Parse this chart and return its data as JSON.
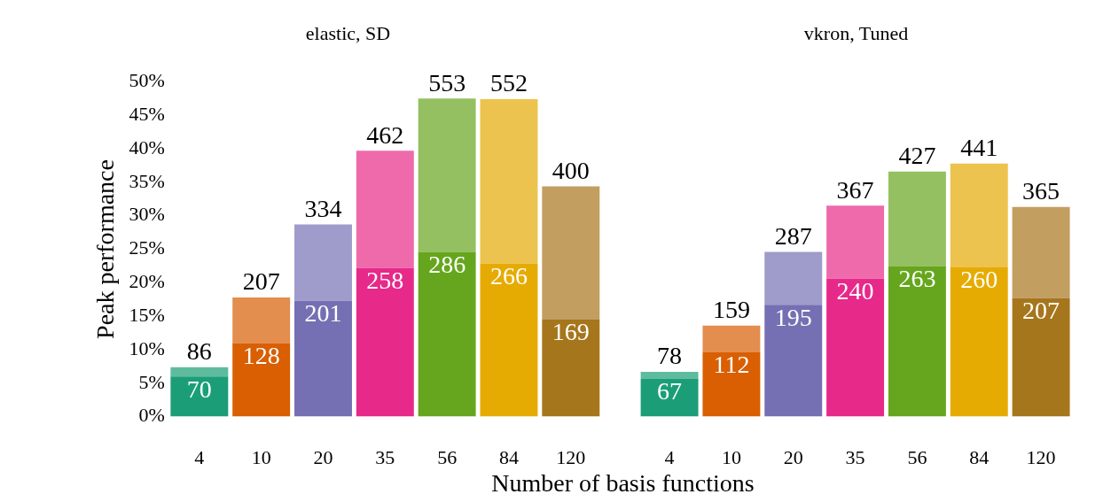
{
  "chart_data": [
    {
      "type": "bar",
      "title": "elastic, SD",
      "ylabel": "Peak performance",
      "xlabel": "Number of basis functions",
      "categories": [
        "4",
        "10",
        "20",
        "35",
        "56",
        "84",
        "120"
      ],
      "stacked": true,
      "ylim": [
        0,
        50
      ],
      "yticks": [
        {
          "value": 0,
          "label": "0%"
        },
        {
          "value": 5,
          "label": "5%"
        },
        {
          "value": 10,
          "label": "10%"
        },
        {
          "value": 15,
          "label": "15%"
        },
        {
          "value": 20,
          "label": "20%"
        },
        {
          "value": 25,
          "label": "25%"
        },
        {
          "value": 30,
          "label": "30%"
        },
        {
          "value": 35,
          "label": "35%"
        },
        {
          "value": 40,
          "label": "40%"
        },
        {
          "value": 45,
          "label": "45%"
        },
        {
          "value": 50,
          "label": "50%"
        }
      ],
      "grid": false,
      "legend": false,
      "series": [
        {
          "colors": [
            "#1b9e77",
            "#d95f02",
            "#7570b3",
            "#e7298a",
            "#66a61e",
            "#e6ab02",
            "#a6761d"
          ],
          "values": [
            6.0,
            11.0,
            17.3,
            22.2,
            24.6,
            22.9,
            14.5
          ]
        },
        {
          "colors": [
            "#5fbb9d",
            "#e38e4e",
            "#9f9bca",
            "#ee6aab",
            "#94c061",
            "#ecc34e",
            "#c29e61"
          ],
          "values": [
            1.4,
            6.8,
            11.4,
            17.5,
            22.9,
            24.5,
            19.9
          ]
        }
      ],
      "annotations": [
        {
          "text": "70",
          "x": "4",
          "y": 6.0
        },
        {
          "text": "128",
          "x": "10",
          "y": 11.0
        },
        {
          "text": "201",
          "x": "20",
          "y": 17.3
        },
        {
          "text": "258",
          "x": "35",
          "y": 22.2
        },
        {
          "text": "286",
          "x": "56",
          "y": 24.6
        },
        {
          "text": "266",
          "x": "84",
          "y": 22.9
        },
        {
          "text": "169",
          "x": "120",
          "y": 14.5
        },
        {
          "text": "86",
          "x": "4",
          "y": 7.4
        },
        {
          "text": "207",
          "x": "10",
          "y": 17.8
        },
        {
          "text": "334",
          "x": "20",
          "y": 28.7
        },
        {
          "text": "462",
          "x": "35",
          "y": 39.7
        },
        {
          "text": "553",
          "x": "56",
          "y": 47.5
        },
        {
          "text": "552",
          "x": "84",
          "y": 47.4
        },
        {
          "text": "400",
          "x": "120",
          "y": 34.4
        }
      ]
    },
    {
      "type": "bar",
      "title": "vkron, Tuned",
      "categories": [
        "4",
        "10",
        "20",
        "35",
        "56",
        "84",
        "120"
      ],
      "stacked": true,
      "ylim": [
        0,
        50
      ],
      "tick_labels": "x",
      "grid": false,
      "legend": false,
      "series": [
        {
          "colors": [
            "#1b9e77",
            "#d95f02",
            "#7570b3",
            "#e7298a",
            "#66a61e",
            "#e6ab02",
            "#a6761d"
          ],
          "values": [
            5.7,
            9.6,
            16.7,
            20.6,
            22.5,
            22.3,
            17.7
          ]
        },
        {
          "colors": [
            "#5fbb9d",
            "#e38e4e",
            "#9f9bca",
            "#ee6aab",
            "#94c061",
            "#ecc34e",
            "#c29e61"
          ],
          "values": [
            1.0,
            4.0,
            7.9,
            10.9,
            14.1,
            15.5,
            13.6
          ]
        }
      ],
      "annotations": [
        {
          "text": "67",
          "x": "4",
          "y": 5.7
        },
        {
          "text": "112",
          "x": "10",
          "y": 9.6
        },
        {
          "text": "195",
          "x": "20",
          "y": 16.7
        },
        {
          "text": "240",
          "x": "35",
          "y": 20.6
        },
        {
          "text": "263",
          "x": "56",
          "y": 22.5
        },
        {
          "text": "260",
          "x": "84",
          "y": 22.3
        },
        {
          "text": "207",
          "x": "120",
          "y": 17.7
        },
        {
          "text": "78",
          "x": "4",
          "y": 6.7
        },
        {
          "text": "159",
          "x": "10",
          "y": 13.6
        },
        {
          "text": "287",
          "x": "20",
          "y": 24.6
        },
        {
          "text": "367",
          "x": "35",
          "y": 31.5
        },
        {
          "text": "427",
          "x": "56",
          "y": 36.6
        },
        {
          "text": "441",
          "x": "84",
          "y": 37.8
        },
        {
          "text": "365",
          "x": "120",
          "y": 31.3
        }
      ]
    }
  ]
}
